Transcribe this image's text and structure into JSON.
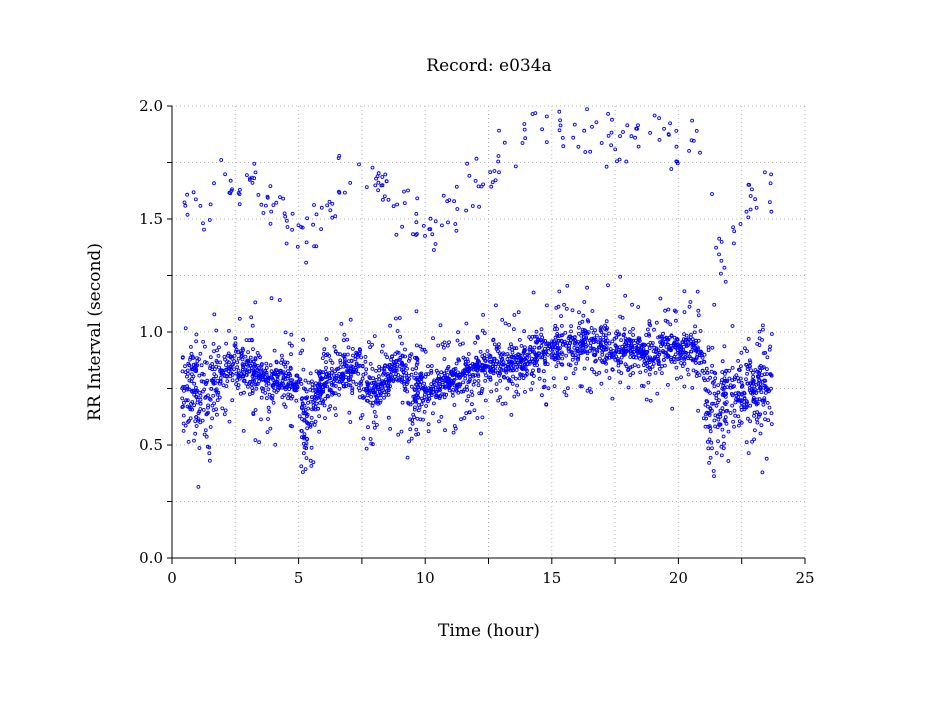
{
  "chart_data": {
    "type": "scatter",
    "title": "Record:  e034a",
    "xlabel": "Time (hour)",
    "ylabel": "RR Interval (second)",
    "xlim": [
      0,
      25
    ],
    "ylim": [
      0.0,
      2.0
    ],
    "x_ticks": [
      0,
      5,
      10,
      15,
      20,
      25
    ],
    "y_ticks": [
      0.0,
      0.5,
      1.0,
      1.5,
      2.0
    ],
    "x_tick_labels": [
      "0",
      "5",
      "10",
      "15",
      "20",
      "25"
    ],
    "y_tick_labels": [
      "0.0",
      "0.5",
      "1.0",
      "1.5",
      "2.0"
    ],
    "grid": true,
    "marker": "open-circle",
    "series": [
      {
        "color": "#0000ff",
        "baseline": [
          [
            0.4,
            0.72
          ],
          [
            0.9,
            0.74
          ],
          [
            1.4,
            0.68
          ],
          [
            1.8,
            0.78
          ],
          [
            2.2,
            0.84
          ],
          [
            2.7,
            0.85
          ],
          [
            3.3,
            0.83
          ],
          [
            3.8,
            0.78
          ],
          [
            4.5,
            0.79
          ],
          [
            5.0,
            0.76
          ],
          [
            5.3,
            0.6
          ],
          [
            5.8,
            0.77
          ],
          [
            6.5,
            0.79
          ],
          [
            7.2,
            0.83
          ],
          [
            7.9,
            0.74
          ],
          [
            8.5,
            0.8
          ],
          [
            9.0,
            0.86
          ],
          [
            9.5,
            0.74
          ],
          [
            10.5,
            0.76
          ],
          [
            11.2,
            0.8
          ],
          [
            12.2,
            0.83
          ],
          [
            12.8,
            0.86
          ],
          [
            13.5,
            0.86
          ],
          [
            14.3,
            0.9
          ],
          [
            15.0,
            0.93
          ],
          [
            15.8,
            0.94
          ],
          [
            16.5,
            0.97
          ],
          [
            17.3,
            0.92
          ],
          [
            18.2,
            0.93
          ],
          [
            19.0,
            0.9
          ],
          [
            19.7,
            0.94
          ],
          [
            20.3,
            0.93
          ],
          [
            20.9,
            0.92
          ],
          [
            21.1,
            0.7
          ],
          [
            21.8,
            0.68
          ],
          [
            22.5,
            0.75
          ],
          [
            23.2,
            0.74
          ],
          [
            23.7,
            0.77
          ]
        ],
        "high_cluster": [
          [
            0.9,
            1.6
          ],
          [
            1.6,
            1.55
          ],
          [
            2.0,
            1.7
          ],
          [
            2.5,
            1.6
          ],
          [
            3.0,
            1.7
          ],
          [
            4.0,
            1.55
          ],
          [
            5.0,
            1.4
          ],
          [
            6.0,
            1.5
          ],
          [
            7.0,
            1.7
          ],
          [
            7.5,
            1.75
          ],
          [
            8.5,
            1.6
          ],
          [
            10.0,
            1.45
          ],
          [
            11.0,
            1.55
          ],
          [
            12.0,
            1.65
          ],
          [
            12.8,
            1.75
          ],
          [
            13.5,
            1.8
          ],
          [
            14.5,
            1.9
          ],
          [
            15.5,
            1.88
          ],
          [
            16.5,
            1.9
          ],
          [
            17.5,
            1.85
          ],
          [
            18.5,
            1.95
          ],
          [
            19.5,
            1.85
          ],
          [
            20.5,
            1.88
          ],
          [
            21.8,
            1.3
          ],
          [
            22.5,
            1.55
          ],
          [
            23.3,
            1.6
          ]
        ]
      }
    ]
  }
}
